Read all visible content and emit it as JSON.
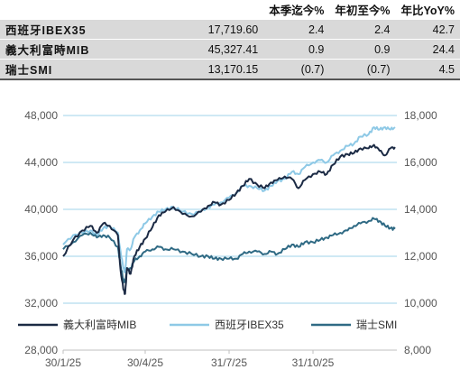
{
  "table": {
    "headers": [
      "",
      "本季迄今%",
      "年初至今%",
      "年比YoY%"
    ],
    "rows": [
      {
        "name": "西班牙IBEX35",
        "level": "17,719.60",
        "qtd": "2.4",
        "ytd": "2.4",
        "yoy": "42.7"
      },
      {
        "name": "義大利富時MIB",
        "level": "45,327.41",
        "qtd": "0.9",
        "ytd": "0.9",
        "yoy": "24.4"
      },
      {
        "name": "瑞士SMI",
        "level": "13,170.15",
        "qtd": "(0.7)",
        "ytd": "(0.7)",
        "yoy": "4.5"
      }
    ]
  },
  "chart_data": {
    "type": "line",
    "x_tick_labels": [
      "30/1/25",
      "30/4/25",
      "31/7/25",
      "31/10/25"
    ],
    "left_axis": {
      "min": 28000,
      "max": 48000,
      "ticks": [
        "28,000",
        "32,000",
        "36,000",
        "40,000",
        "44,000",
        "48,000"
      ]
    },
    "right_axis": {
      "min": 8000,
      "max": 18000,
      "ticks": [
        "8,000",
        "10,000",
        "12,000",
        "14,000",
        "16,000",
        "18,000"
      ]
    },
    "grid": "horizontal",
    "legend_position": "bottom",
    "x_domain": [
      "2025-01-30",
      "2026-01-31"
    ],
    "series": [
      {
        "name": "義大利富時MIB",
        "axis": "left",
        "color": "#1b2a44",
        "points": [
          [
            "2025-01-30",
            36000
          ],
          [
            "2025-02-10",
            37400
          ],
          [
            "2025-02-20",
            38200
          ],
          [
            "2025-03-01",
            38600
          ],
          [
            "2025-03-08",
            38000
          ],
          [
            "2025-03-15",
            38800
          ],
          [
            "2025-03-22",
            38600
          ],
          [
            "2025-03-31",
            37800
          ],
          [
            "2025-04-03",
            34800
          ],
          [
            "2025-04-06",
            33200
          ],
          [
            "2025-04-08",
            32800
          ],
          [
            "2025-04-10",
            35000
          ],
          [
            "2025-04-14",
            34500
          ],
          [
            "2025-04-18",
            36000
          ],
          [
            "2025-04-24",
            36800
          ],
          [
            "2025-04-30",
            37500
          ],
          [
            "2025-05-08",
            38500
          ],
          [
            "2025-05-15",
            39500
          ],
          [
            "2025-05-22",
            39800
          ],
          [
            "2025-05-31",
            40200
          ],
          [
            "2025-06-10",
            39600
          ],
          [
            "2025-06-20",
            39400
          ],
          [
            "2025-06-30",
            39800
          ],
          [
            "2025-07-08",
            40300
          ],
          [
            "2025-07-15",
            40600
          ],
          [
            "2025-07-22",
            40400
          ],
          [
            "2025-07-31",
            40800
          ],
          [
            "2025-08-08",
            41400
          ],
          [
            "2025-08-15",
            42000
          ],
          [
            "2025-08-22",
            42600
          ],
          [
            "2025-08-31",
            42100
          ],
          [
            "2025-09-08",
            41800
          ],
          [
            "2025-09-15",
            42300
          ],
          [
            "2025-09-22",
            42500
          ],
          [
            "2025-09-30",
            42800
          ],
          [
            "2025-10-08",
            42600
          ],
          [
            "2025-10-15",
            41800
          ],
          [
            "2025-10-22",
            42500
          ],
          [
            "2025-10-31",
            43000
          ],
          [
            "2025-11-08",
            43200
          ],
          [
            "2025-11-15",
            43000
          ],
          [
            "2025-11-22",
            43800
          ],
          [
            "2025-11-30",
            44500
          ],
          [
            "2025-12-08",
            44700
          ],
          [
            "2025-12-15",
            44800
          ],
          [
            "2025-12-22",
            45200
          ],
          [
            "2025-12-31",
            45200
          ],
          [
            "2026-01-06",
            45500
          ],
          [
            "2026-01-12",
            45000
          ],
          [
            "2026-01-18",
            44600
          ],
          [
            "2026-01-24",
            45200
          ],
          [
            "2026-01-29",
            45300
          ]
        ]
      },
      {
        "name": "西班牙IBEX35",
        "axis": "right",
        "color": "#8ec9e6",
        "points": [
          [
            "2025-01-30",
            12500
          ],
          [
            "2025-02-10",
            12900
          ],
          [
            "2025-02-20",
            13000
          ],
          [
            "2025-03-01",
            13100
          ],
          [
            "2025-03-08",
            12900
          ],
          [
            "2025-03-15",
            13200
          ],
          [
            "2025-03-22",
            13300
          ],
          [
            "2025-03-31",
            13000
          ],
          [
            "2025-04-03",
            12200
          ],
          [
            "2025-04-06",
            11500
          ],
          [
            "2025-04-08",
            11300
          ],
          [
            "2025-04-10",
            12300
          ],
          [
            "2025-04-14",
            12300
          ],
          [
            "2025-04-18",
            12800
          ],
          [
            "2025-04-24",
            13100
          ],
          [
            "2025-04-30",
            13400
          ],
          [
            "2025-05-08",
            13700
          ],
          [
            "2025-05-15",
            13900
          ],
          [
            "2025-05-22",
            14000
          ],
          [
            "2025-05-31",
            14100
          ],
          [
            "2025-06-10",
            13900
          ],
          [
            "2025-06-20",
            13800
          ],
          [
            "2025-06-30",
            13900
          ],
          [
            "2025-07-08",
            14100
          ],
          [
            "2025-07-15",
            14200
          ],
          [
            "2025-07-22",
            14300
          ],
          [
            "2025-07-31",
            14500
          ],
          [
            "2025-08-08",
            14700
          ],
          [
            "2025-08-15",
            15000
          ],
          [
            "2025-08-22",
            15000
          ],
          [
            "2025-08-31",
            14900
          ],
          [
            "2025-09-08",
            14800
          ],
          [
            "2025-09-15",
            15000
          ],
          [
            "2025-09-22",
            15200
          ],
          [
            "2025-09-30",
            15300
          ],
          [
            "2025-10-08",
            15600
          ],
          [
            "2025-10-15",
            15500
          ],
          [
            "2025-10-22",
            15800
          ],
          [
            "2025-10-31",
            16000
          ],
          [
            "2025-11-08",
            16100
          ],
          [
            "2025-11-15",
            16000
          ],
          [
            "2025-11-22",
            16300
          ],
          [
            "2025-11-30",
            16500
          ],
          [
            "2025-12-08",
            16700
          ],
          [
            "2025-12-15",
            16800
          ],
          [
            "2025-12-22",
            17100
          ],
          [
            "2025-12-31",
            17200
          ],
          [
            "2026-01-06",
            17500
          ],
          [
            "2026-01-12",
            17400
          ],
          [
            "2026-01-18",
            17500
          ],
          [
            "2026-01-24",
            17400
          ],
          [
            "2026-01-29",
            17500
          ]
        ]
      },
      {
        "name": "瑞士SMI",
        "axis": "right",
        "color": "#2f6a84",
        "points": [
          [
            "2025-01-30",
            12300
          ],
          [
            "2025-02-10",
            12600
          ],
          [
            "2025-02-20",
            12900
          ],
          [
            "2025-03-01",
            13000
          ],
          [
            "2025-03-08",
            12800
          ],
          [
            "2025-03-15",
            12900
          ],
          [
            "2025-03-22",
            12800
          ],
          [
            "2025-03-31",
            12400
          ],
          [
            "2025-04-03",
            11600
          ],
          [
            "2025-04-06",
            11000
          ],
          [
            "2025-04-08",
            10900
          ],
          [
            "2025-04-10",
            11400
          ],
          [
            "2025-04-14",
            11500
          ],
          [
            "2025-04-18",
            11800
          ],
          [
            "2025-04-24",
            12000
          ],
          [
            "2025-04-30",
            12200
          ],
          [
            "2025-05-08",
            12300
          ],
          [
            "2025-05-15",
            12400
          ],
          [
            "2025-05-22",
            12300
          ],
          [
            "2025-05-31",
            12300
          ],
          [
            "2025-06-10",
            12200
          ],
          [
            "2025-06-20",
            12100
          ],
          [
            "2025-06-30",
            12000
          ],
          [
            "2025-07-08",
            12000
          ],
          [
            "2025-07-15",
            11900
          ],
          [
            "2025-07-22",
            11900
          ],
          [
            "2025-07-31",
            11900
          ],
          [
            "2025-08-08",
            11900
          ],
          [
            "2025-08-15",
            12100
          ],
          [
            "2025-08-22",
            12200
          ],
          [
            "2025-08-31",
            12200
          ],
          [
            "2025-09-08",
            12100
          ],
          [
            "2025-09-15",
            12200
          ],
          [
            "2025-09-22",
            12100
          ],
          [
            "2025-09-30",
            12300
          ],
          [
            "2025-10-08",
            12500
          ],
          [
            "2025-10-15",
            12400
          ],
          [
            "2025-10-22",
            12600
          ],
          [
            "2025-10-31",
            12600
          ],
          [
            "2025-11-08",
            12700
          ],
          [
            "2025-11-15",
            12800
          ],
          [
            "2025-11-22",
            12900
          ],
          [
            "2025-11-30",
            13000
          ],
          [
            "2025-12-08",
            13100
          ],
          [
            "2025-12-15",
            13300
          ],
          [
            "2025-12-22",
            13400
          ],
          [
            "2025-12-31",
            13500
          ],
          [
            "2026-01-06",
            13600
          ],
          [
            "2026-01-12",
            13500
          ],
          [
            "2026-01-18",
            13300
          ],
          [
            "2026-01-24",
            13200
          ],
          [
            "2026-01-29",
            13170
          ]
        ]
      }
    ]
  }
}
